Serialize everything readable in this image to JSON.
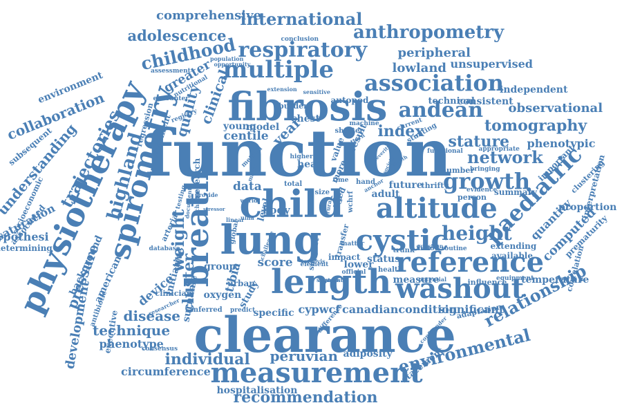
{
  "style": {
    "word_color": "#4a7fb5",
    "background": "#ffffff"
  },
  "words": [
    {
      "t": "function"
    },
    {
      "t": "clearance"
    },
    {
      "t": "fibrosis"
    },
    {
      "t": "child"
    },
    {
      "t": "length"
    },
    {
      "t": "lung"
    },
    {
      "t": "breath"
    },
    {
      "t": "spirometry"
    },
    {
      "t": "physiotherapy"
    },
    {
      "t": "measurement"
    },
    {
      "t": "reference"
    },
    {
      "t": "washout"
    },
    {
      "t": "altitude"
    },
    {
      "t": "multiple"
    },
    {
      "t": "association"
    },
    {
      "t": "cystic"
    },
    {
      "t": "andean"
    },
    {
      "t": "respiratory"
    },
    {
      "t": "anthropometry"
    },
    {
      "t": "international"
    },
    {
      "t": "childhood"
    },
    {
      "t": "adolescence"
    },
    {
      "t": "comprehensive"
    },
    {
      "t": "growth"
    },
    {
      "t": "network"
    },
    {
      "t": "paediatric"
    },
    {
      "t": "relationship"
    },
    {
      "t": "environmental"
    },
    {
      "t": "individual"
    },
    {
      "t": "recommendation"
    },
    {
      "t": "tomography"
    },
    {
      "t": "observational"
    },
    {
      "t": "height"
    },
    {
      "t": "highland"
    },
    {
      "t": "weight"
    },
    {
      "t": "peruvian"
    },
    {
      "t": "technique"
    },
    {
      "t": "disease"
    },
    {
      "t": "lowland"
    },
    {
      "t": "peripheral"
    },
    {
      "t": "unsupervised"
    },
    {
      "t": "index"
    },
    {
      "t": "stature"
    },
    {
      "t": "collaboration"
    },
    {
      "t": "trajectories"
    },
    {
      "t": "understanding"
    },
    {
      "t": "clinical"
    },
    {
      "t": "quality"
    },
    {
      "t": "pressure"
    },
    {
      "t": "cluster"
    },
    {
      "t": "circumference"
    },
    {
      "t": "hospitalisation"
    },
    {
      "t": "adiposity"
    },
    {
      "t": "development"
    },
    {
      "t": "environment"
    },
    {
      "t": "phenotype"
    },
    {
      "t": "score"
    },
    {
      "t": "data"
    },
    {
      "t": "centile"
    },
    {
      "t": "canadiancondition"
    },
    {
      "t": "significant"
    },
    {
      "t": "cypwcf"
    },
    {
      "t": "specific"
    },
    {
      "t": "device"
    },
    {
      "t": "greater"
    },
    {
      "t": "hypothesi"
    },
    {
      "t": "determining"
    },
    {
      "t": "saturation"
    },
    {
      "t": "proportion"
    },
    {
      "t": "phenotypic"
    },
    {
      "t": "computed"
    },
    {
      "t": "quantity"
    },
    {
      "t": "temperature"
    },
    {
      "t": "tibia"
    },
    {
      "t": "oxygen"
    },
    {
      "t": "year"
    },
    {
      "t": "independent"
    },
    {
      "t": "consistent"
    },
    {
      "t": "technical"
    },
    {
      "t": "subsequent"
    },
    {
      "t": "background"
    },
    {
      "t": "american"
    },
    {
      "t": "initiative"
    },
    {
      "t": "surname"
    },
    {
      "t": "status"
    },
    {
      "t": "measure"
    },
    {
      "t": "future"
    },
    {
      "t": "body"
    },
    {
      "t": "adult"
    },
    {
      "t": "prematurity"
    },
    {
      "t": "correlation"
    },
    {
      "t": "interpretation"
    },
    {
      "t": "important"
    },
    {
      "t": "clustering"
    },
    {
      "t": "summary"
    },
    {
      "t": "extending"
    },
    {
      "t": "available"
    },
    {
      "t": "influence"
    },
    {
      "t": "statement"
    },
    {
      "t": "adaptation"
    },
    {
      "t": "chest"
    },
    {
      "t": "young"
    },
    {
      "t": "model"
    },
    {
      "t": "head"
    },
    {
      "t": "result"
    },
    {
      "t": "group"
    },
    {
      "t": "lower"
    },
    {
      "t": "impact"
    },
    {
      "t": "research"
    },
    {
      "t": "study"
    },
    {
      "t": "executive"
    },
    {
      "t": "antibiotic"
    },
    {
      "t": "consensus"
    },
    {
      "t": "inferred"
    },
    {
      "t": "predict"
    },
    {
      "t": "clinician"
    },
    {
      "t": "urban"
    },
    {
      "t": "health"
    },
    {
      "t": "official"
    },
    {
      "t": "trunk"
    },
    {
      "t": "blood"
    },
    {
      "t": "routine"
    },
    {
      "t": "person"
    },
    {
      "t": "evidence"
    },
    {
      "t": "number"
    },
    {
      "t": "bringing"
    },
    {
      "t": "appropriate"
    },
    {
      "t": "thrifty"
    },
    {
      "t": "functional"
    },
    {
      "t": "stunting"
    },
    {
      "t": "current"
    },
    {
      "t": "shorter"
    },
    {
      "t": "machine"
    },
    {
      "t": "autopod"
    },
    {
      "t": "burden"
    },
    {
      "t": "extension"
    },
    {
      "t": "sensitive"
    },
    {
      "t": "opportunity"
    },
    {
      "t": "population"
    },
    {
      "t": "conclusion"
    },
    {
      "t": "assessment"
    },
    {
      "t": "regression"
    },
    {
      "t": "treatment"
    },
    {
      "t": "encounter"
    },
    {
      "t": "socioeconomic"
    },
    {
      "t": "associated"
    },
    {
      "t": "registry"
    },
    {
      "t": "nutritional"
    },
    {
      "t": "testing"
    },
    {
      "t": "database"
    },
    {
      "t": "arterial"
    },
    {
      "t": "researcher"
    },
    {
      "t": "global"
    },
    {
      "t": "level"
    },
    {
      "t": "total"
    },
    {
      "t": "size"
    },
    {
      "t": "aged"
    },
    {
      "t": "value"
    },
    {
      "t": "more"
    },
    {
      "t": "time"
    },
    {
      "t": "hand"
    },
    {
      "t": "transfer"
    },
    {
      "t": "wchrf"
    },
    {
      "t": "matter"
    },
    {
      "t": "support"
    },
    {
      "t": "element"
    },
    {
      "t": "segment"
    },
    {
      "t": "difference"
    },
    {
      "t": "confounder"
    },
    {
      "t": "equipment"
    },
    {
      "t": "potential"
    },
    {
      "t": "question"
    },
    {
      "t": "anchor"
    },
    {
      "t": "higher"
    },
    {
      "t": "method"
    },
    {
      "t": "document"
    },
    {
      "t": "change"
    },
    {
      "t": "provide"
    },
    {
      "t": "stressor"
    },
    {
      "t": "linear"
    },
    {
      "t": "pattern"
    },
    {
      "t": "severity"
    },
    {
      "t": "month"
    },
    {
      "t": "society"
    },
    {
      "t": "world"
    },
    {
      "t": "major"
    },
    {
      "t": "foot"
    },
    {
      "t": "rural"
    },
    {
      "t": "ulna"
    },
    {
      "t": "challenge"
    },
    {
      "t": "torsovis"
    },
    {
      "t": "analysis"
    }
  ]
}
